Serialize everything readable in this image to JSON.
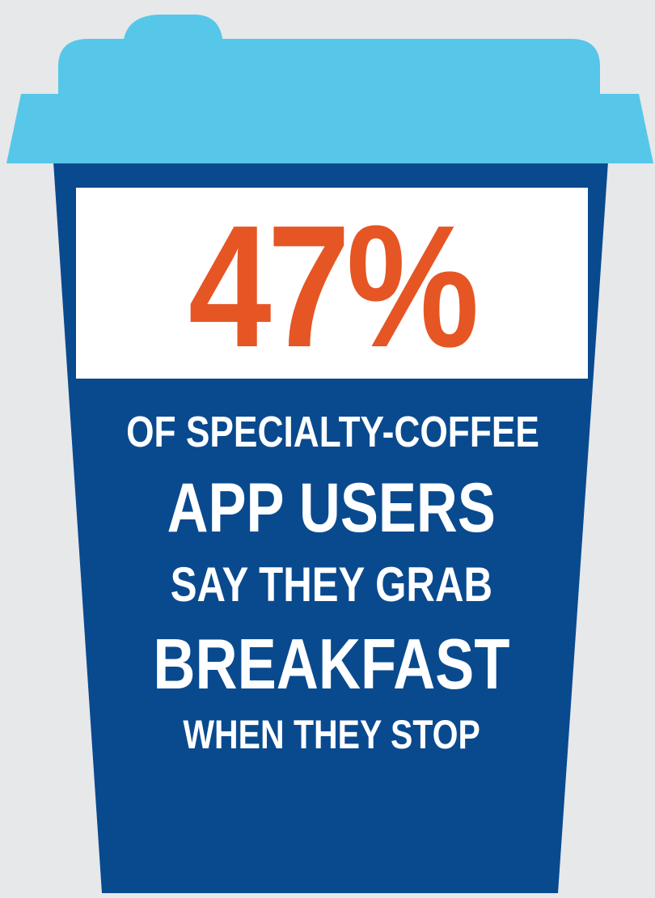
{
  "stat": {
    "value": "47%"
  },
  "caption": {
    "line1": "OF SPECIALTY-COFFEE",
    "line2": "APP USERS",
    "line3": "SAY THEY GRAB",
    "line4": "BREAKFAST",
    "line5": "WHEN THEY STOP"
  },
  "colors": {
    "background": "#e7e8ea",
    "lid": "#56c7e8",
    "cup_body": "#094a8f",
    "panel": "#ffffff",
    "stat_text": "#e55624",
    "caption_text": "#ffffff"
  },
  "icons": {
    "illustration": "coffee-cup-icon"
  }
}
